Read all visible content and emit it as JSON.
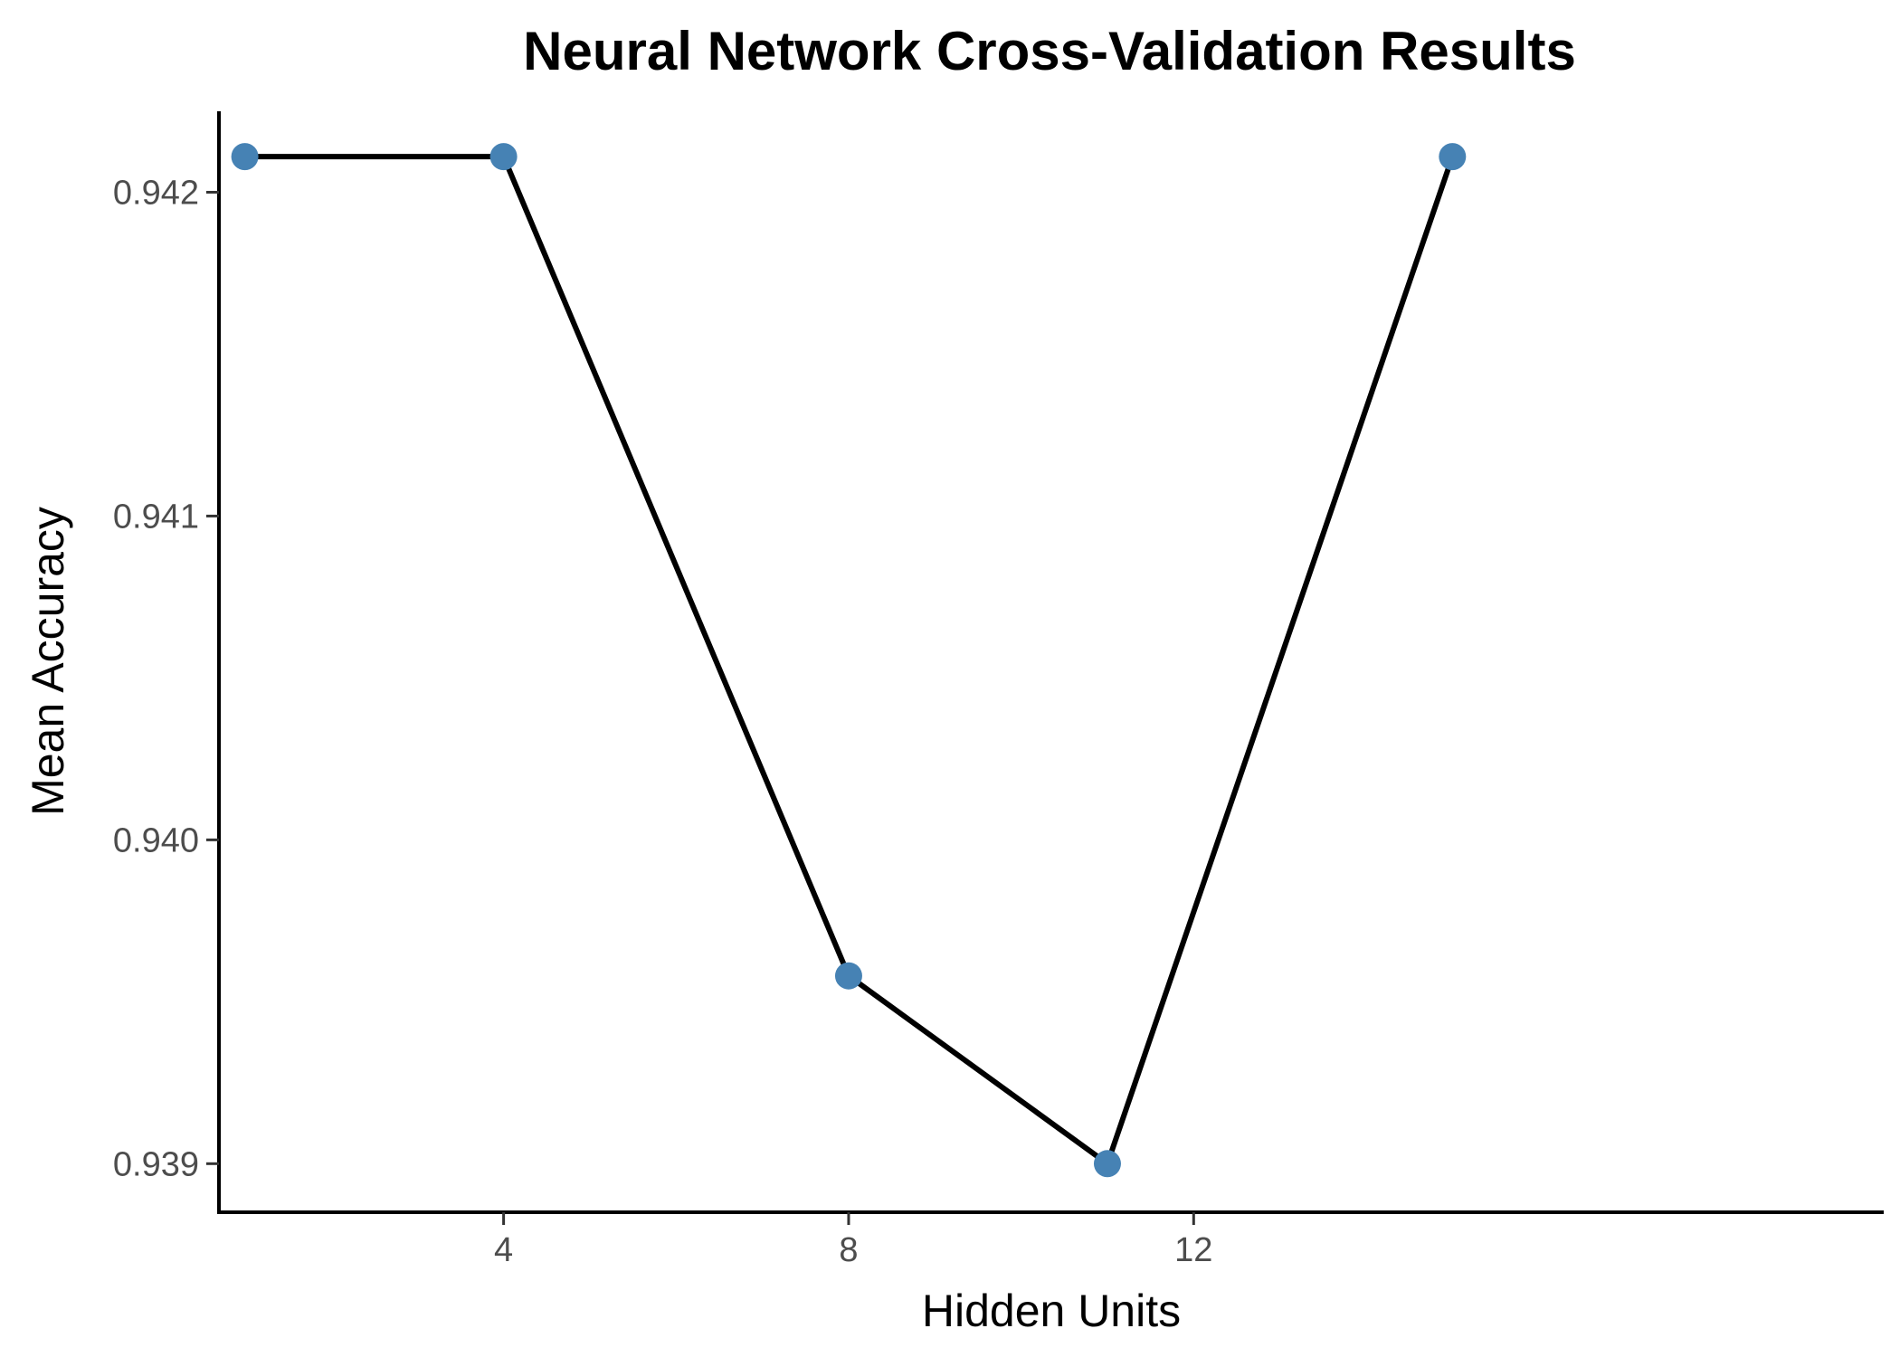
{
  "chart_data": {
    "type": "line",
    "title": "Neural Network Cross-Validation Results",
    "xlabel": "Hidden Units",
    "ylabel": "Mean Accuracy",
    "xlim": [
      0.7,
      20.0
    ],
    "ylim": [
      0.93885,
      0.94225
    ],
    "xticks": [
      {
        "value": 4,
        "label": "4"
      },
      {
        "value": 8,
        "label": "8"
      },
      {
        "value": 12,
        "label": "12"
      }
    ],
    "yticks": [
      {
        "value": 0.939,
        "label": "0.939"
      },
      {
        "value": 0.94,
        "label": "0.940"
      },
      {
        "value": 0.941,
        "label": "0.941"
      },
      {
        "value": 0.942,
        "label": "0.942"
      }
    ],
    "grid": false,
    "legend": "none",
    "series": [
      {
        "x": [
          1,
          4,
          8,
          11,
          15
        ],
        "y": [
          0.94211,
          0.94211,
          0.93958,
          0.939,
          0.94211
        ],
        "line_color": "#000000",
        "point_color": "#4682b4"
      }
    ]
  }
}
